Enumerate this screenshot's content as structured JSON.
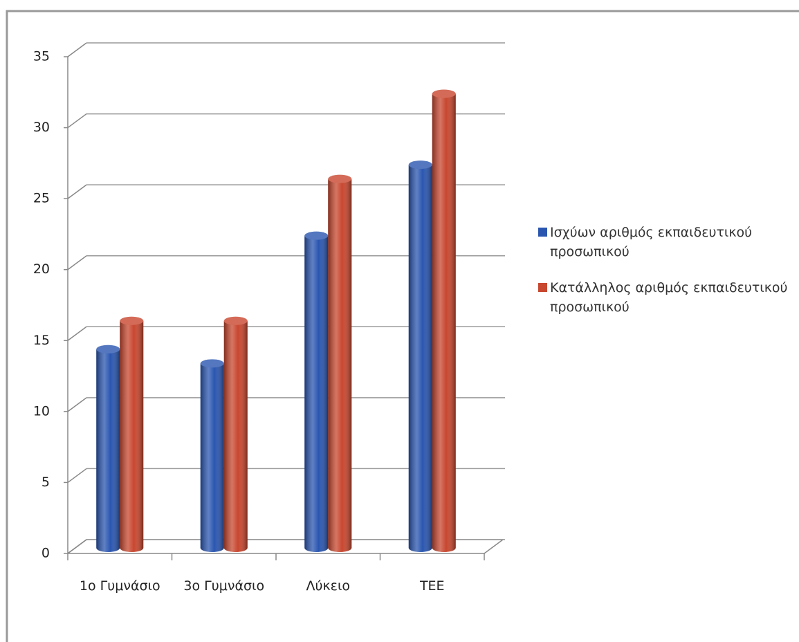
{
  "chart_data": {
    "type": "bar3d",
    "categories": [
      "1ο Γυμνάσιο",
      "3ο Γυμνάσιο",
      "Λύκειο",
      "ΤΕΕ"
    ],
    "series": [
      {
        "name": "Ισχύων αριθμός εκπαιδευτικού προσωπικού",
        "color": "#2a56b0",
        "values": [
          14,
          13,
          22,
          27
        ]
      },
      {
        "name": "Κατάλληλος αριθμός εκπαιδευτικού προσωπικού",
        "color": "#c8472f",
        "values": [
          16,
          16,
          26,
          32
        ]
      }
    ],
    "ylim": [
      0,
      35
    ],
    "yticks": [
      0,
      5,
      10,
      15,
      20,
      25,
      30,
      35
    ],
    "grid": true,
    "legend": "right"
  }
}
